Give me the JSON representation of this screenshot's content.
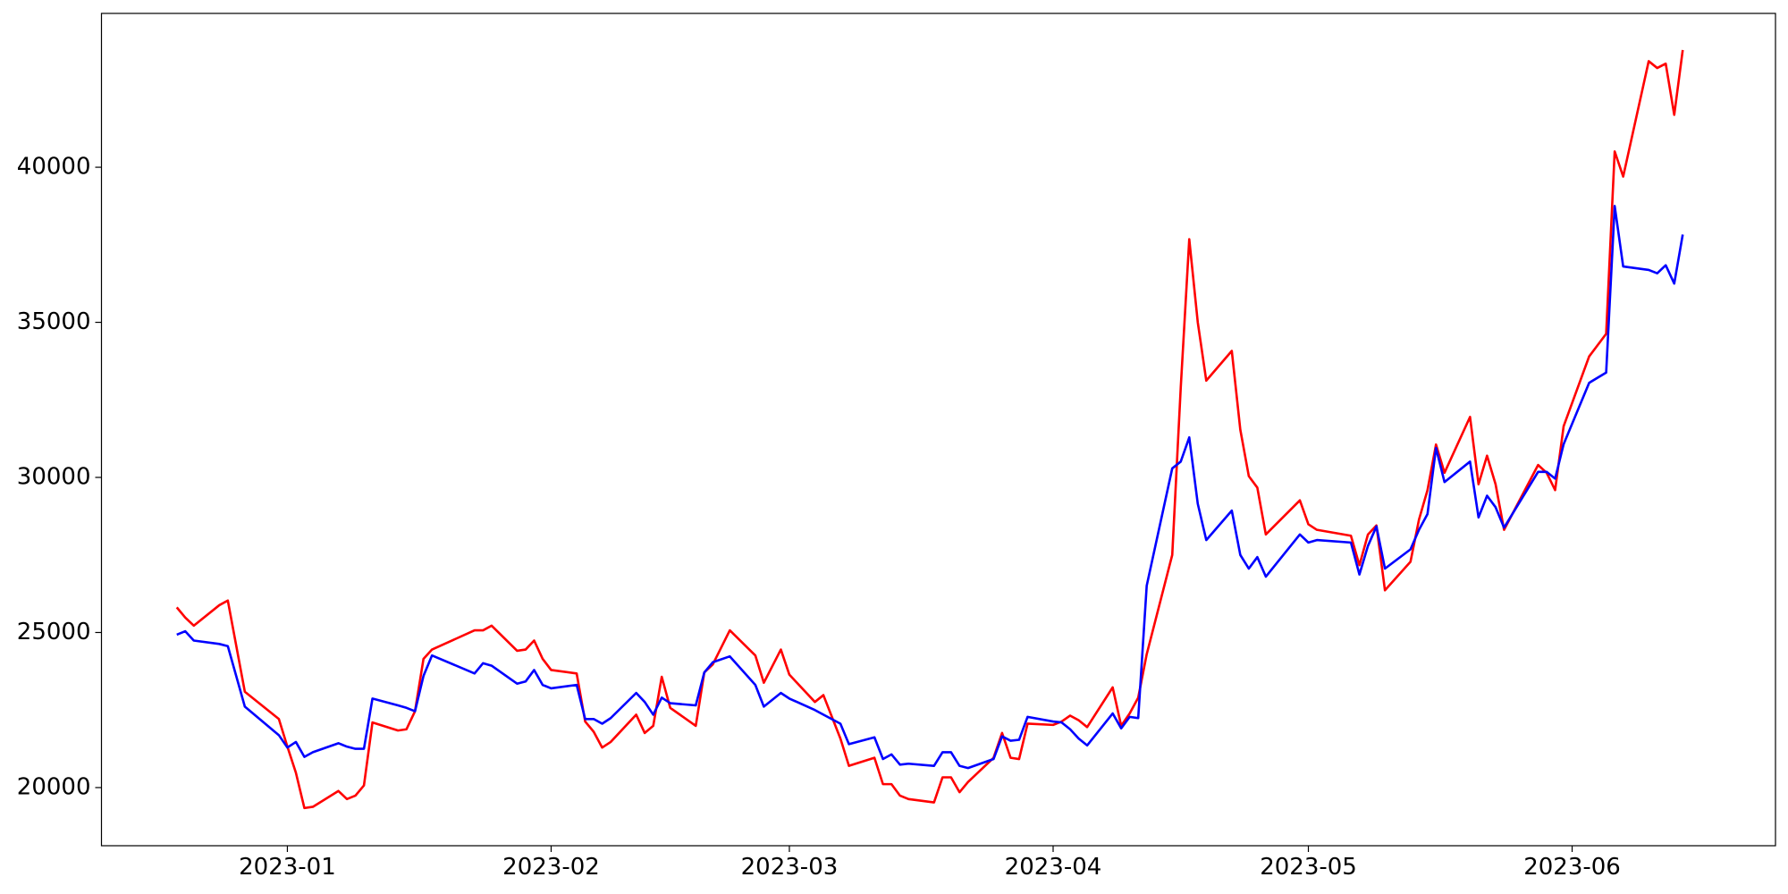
{
  "chart_data": {
    "type": "line",
    "x": [
      19345,
      19346,
      19347,
      19350,
      19351,
      19353,
      19357,
      19358,
      19359,
      19360,
      19361,
      19364,
      19365,
      19366,
      19367,
      19368,
      19371,
      19372,
      19373,
      19374,
      19375,
      19380,
      19381,
      19382,
      19385,
      19386,
      19387,
      19388,
      19389,
      19392,
      19393,
      19394,
      19395,
      19396,
      19399,
      19400,
      19401,
      19402,
      19403,
      19406,
      19407,
      19408,
      19410,
      19413,
      19414,
      19416,
      19417,
      19420,
      19421,
      19423,
      19424,
      19427,
      19428,
      19429,
      19430,
      19431,
      19434,
      19435,
      19436,
      19437,
      19438,
      19441,
      19442,
      19443,
      19444,
      19445,
      19448,
      19449,
      19450,
      19451,
      19452,
      19455,
      19456,
      19457,
      19458,
      19459,
      19462,
      19463,
      19464,
      19465,
      19466,
      19469,
      19470,
      19471,
      19472,
      19473,
      19477,
      19478,
      19479,
      19483,
      19484,
      19485,
      19486,
      19487,
      19490,
      19491,
      19492,
      19493,
      19494,
      19497,
      19498,
      19499,
      19500,
      19501,
      19505,
      19506,
      19507,
      19508,
      19511,
      19513,
      19514,
      19515,
      19518,
      19519,
      19520,
      19521,
      19522
    ],
    "series": [
      {
        "color": "#ff0000",
        "values": [
          25810,
          25480,
          25220,
          25880,
          26030,
          23090,
          22210,
          21320,
          20480,
          19340,
          19380,
          19890,
          19630,
          19740,
          20070,
          22100,
          21840,
          21880,
          22460,
          24150,
          24450,
          25070,
          25070,
          25220,
          24410,
          24450,
          24740,
          24150,
          23790,
          23680,
          22130,
          21800,
          21290,
          21470,
          22350,
          21760,
          21990,
          23570,
          22570,
          21990,
          23710,
          23970,
          25070,
          24260,
          23380,
          24450,
          23640,
          22760,
          22980,
          21580,
          20700,
          20960,
          20110,
          20110,
          19740,
          19630,
          19520,
          20330,
          20330,
          19850,
          20180,
          20960,
          21760,
          20960,
          20920,
          22060,
          22020,
          22130,
          22320,
          22170,
          21950,
          23230,
          21990,
          22390,
          22900,
          24300,
          27500,
          32900,
          37680,
          35000,
          33120,
          34080,
          31540,
          30040,
          29670,
          28160,
          29260,
          28490,
          28310,
          28120,
          27170,
          28160,
          28450,
          26360,
          27280,
          28640,
          29590,
          31060,
          30150,
          31950,
          29780,
          30700,
          29780,
          28310,
          30400,
          30150,
          29590,
          31650,
          33900,
          34630,
          40510,
          39700,
          43420,
          43200,
          43340,
          41690,
          43780
        ]
      },
      {
        "color": "#0000ff",
        "values": [
          24930,
          25040,
          24740,
          24630,
          24560,
          22610,
          21690,
          21290,
          21470,
          20990,
          21140,
          21430,
          21320,
          21250,
          21250,
          22870,
          22650,
          22570,
          22460,
          23600,
          24260,
          23680,
          24010,
          23930,
          23350,
          23420,
          23790,
          23310,
          23200,
          23310,
          22210,
          22210,
          22060,
          22240,
          23050,
          22760,
          22350,
          22900,
          22720,
          22650,
          23710,
          24040,
          24230,
          23310,
          22610,
          23050,
          22870,
          22500,
          22350,
          22060,
          21400,
          21620,
          20920,
          21070,
          20740,
          20770,
          20700,
          21140,
          21140,
          20700,
          20630,
          20920,
          21650,
          21510,
          21540,
          22280,
          22130,
          22100,
          21880,
          21580,
          21360,
          22390,
          21910,
          22280,
          22240,
          26510,
          30290,
          30510,
          31290,
          29150,
          27980,
          28930,
          27500,
          27060,
          27430,
          26800,
          28160,
          27900,
          27980,
          27900,
          26870,
          27790,
          28420,
          27060,
          27680,
          28310,
          28820,
          30950,
          29850,
          30510,
          28710,
          29410,
          29040,
          28380,
          30180,
          30180,
          29960,
          31070,
          33050,
          33380,
          38750,
          36800,
          36690,
          36580,
          36840,
          36250,
          37830
        ]
      }
    ],
    "xlim": [
      19336.15,
      19532.9
    ],
    "xticks": [
      {
        "value": 19358,
        "label": "2023-01"
      },
      {
        "value": 19389,
        "label": "2023-02"
      },
      {
        "value": 19417,
        "label": "2023-03"
      },
      {
        "value": 19448,
        "label": "2023-04"
      },
      {
        "value": 19478,
        "label": "2023-05"
      },
      {
        "value": 19509,
        "label": "2023-06"
      }
    ],
    "ylim": [
      18125,
      44960
    ],
    "yticks": [
      20000,
      25000,
      30000,
      35000,
      40000
    ],
    "grid": false
  }
}
